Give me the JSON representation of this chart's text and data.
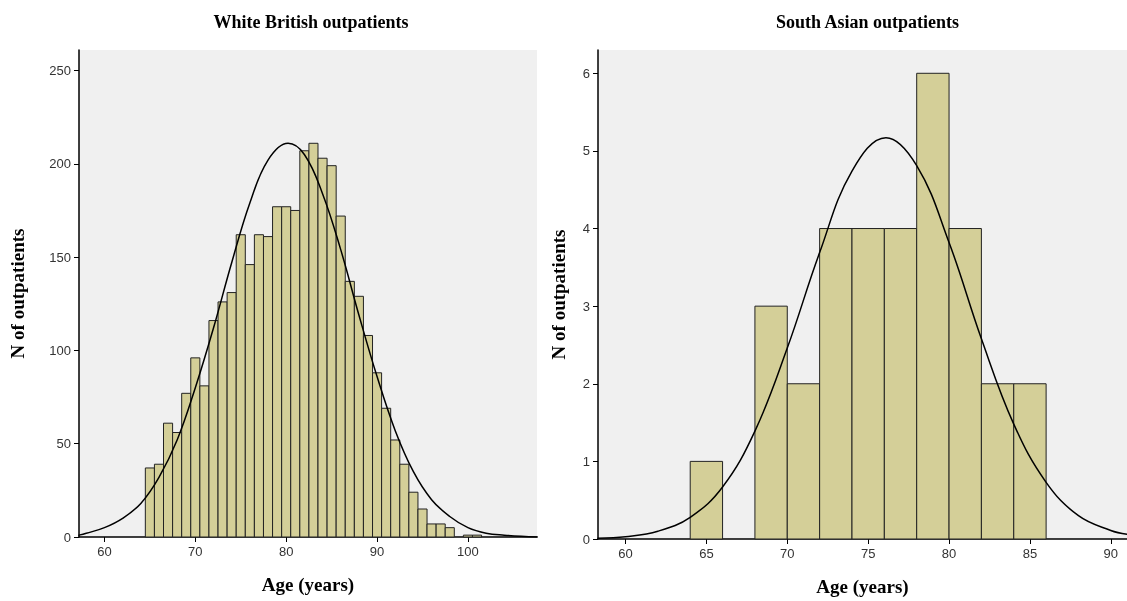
{
  "chart_data": [
    {
      "type": "histogram",
      "title": "White British outpatients",
      "xlabel": "Age (years)",
      "ylabel": "N of outpatients",
      "color": "#d4cf98",
      "grid": false,
      "bins": [
        64.5,
        65.5,
        66.5,
        67.5,
        68.5,
        69.5,
        70.5,
        71.5,
        72.5,
        73.5,
        74.5,
        75.5,
        76.5,
        77.5,
        78.5,
        79.5,
        80.5,
        81.5,
        82.5,
        83.5,
        84.5,
        85.5,
        86.5,
        87.5,
        88.5,
        89.5,
        90.5,
        91.5,
        92.5,
        93.5,
        94.5,
        95.5,
        96.5,
        97.5,
        98.5,
        99.5,
        100.5,
        101.5
      ],
      "values": [
        37,
        39,
        61,
        56,
        77,
        96,
        81,
        116,
        126,
        131,
        162,
        146,
        162,
        161,
        177,
        177,
        175,
        207,
        211,
        203,
        199,
        172,
        137,
        129,
        108,
        88,
        69,
        52,
        39,
        24,
        15,
        7,
        7,
        5,
        0,
        1,
        1
      ],
      "xlim": [
        57.2,
        107.6
      ],
      "xticks": [
        60,
        70,
        80,
        90,
        100
      ],
      "ylim": [
        0,
        261
      ],
      "yticks": [
        0,
        50,
        100,
        150,
        200,
        250
      ],
      "series": [
        {
          "type": "line",
          "color": "#000000",
          "marker": "none",
          "x": [
            57.2,
            58,
            60,
            62,
            64,
            66,
            68,
            70,
            72,
            74,
            76,
            78,
            80.2,
            82,
            84,
            86,
            88,
            90,
            92,
            94,
            96,
            98,
            100,
            102,
            104,
            107.6
          ],
          "values": [
            1,
            2,
            5,
            10,
            18,
            32,
            52,
            80,
            112,
            147,
            179,
            202,
            211,
            205,
            184,
            154,
            119,
            86,
            57,
            35,
            20,
            11,
            5,
            2,
            1,
            0
          ]
        }
      ]
    },
    {
      "type": "histogram",
      "title": "South Asian outpatients",
      "xlabel": "Age (years)",
      "ylabel": "N of outpatients",
      "color": "#d4cf98",
      "grid": false,
      "bins": [
        64,
        66,
        68,
        70,
        72,
        74,
        76,
        78,
        80,
        82,
        84,
        86
      ],
      "values": [
        1,
        0,
        3,
        2,
        4,
        4,
        4,
        6,
        4,
        2,
        2
      ],
      "xlim": [
        58.3,
        91
      ],
      "xticks": [
        60,
        65,
        70,
        75,
        80,
        85,
        90
      ],
      "ylim": [
        0,
        6.3
      ],
      "yticks": [
        0,
        1,
        2,
        3,
        4,
        5,
        6
      ],
      "series": [
        {
          "type": "line",
          "color": "#000000",
          "marker": "none",
          "x": [
            58.3,
            60,
            62,
            64,
            66,
            68,
            70,
            72,
            74,
            76.1,
            78,
            80,
            82,
            84,
            86,
            88,
            90,
            91
          ],
          "values": [
            0.01,
            0.03,
            0.1,
            0.28,
            0.67,
            1.39,
            2.46,
            3.69,
            4.74,
            5.17,
            4.81,
            3.82,
            2.58,
            1.48,
            0.73,
            0.3,
            0.11,
            0.06
          ]
        }
      ]
    }
  ]
}
